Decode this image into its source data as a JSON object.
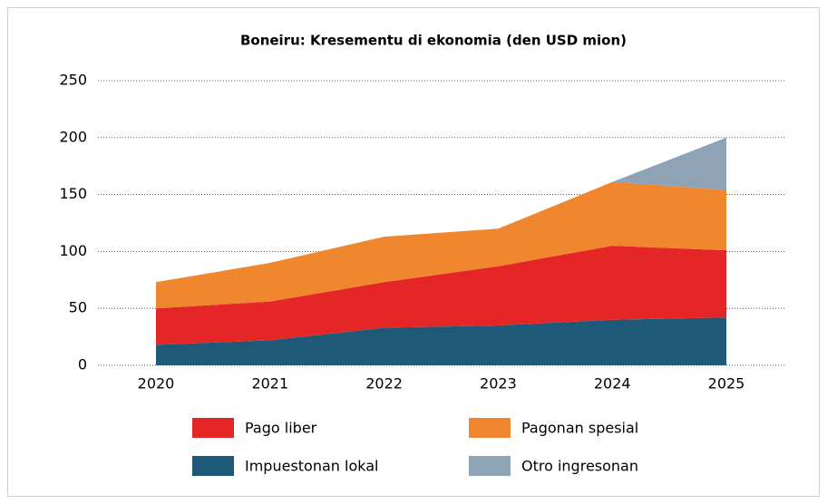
{
  "chart_data": {
    "type": "area",
    "stacked": true,
    "title": "Boneiru: Kresementu di ekonomia (den USD mion)",
    "categories": [
      "2020",
      "2021",
      "2022",
      "2023",
      "2024",
      "2025"
    ],
    "series": [
      {
        "name": "Impuestonan lokal",
        "color": "#1e5a78",
        "values": [
          18,
          22,
          33,
          35,
          40,
          42
        ]
      },
      {
        "name": "Pago liber",
        "color": "#e42726",
        "values": [
          32,
          34,
          40,
          52,
          65,
          59
        ]
      },
      {
        "name": "Pagonan spesial",
        "color": "#f0862e",
        "values": [
          23,
          34,
          40,
          33,
          56,
          53
        ]
      },
      {
        "name": "Otro ingresonan",
        "color": "#8fa3b6",
        "values": [
          0,
          0,
          0,
          0,
          0,
          46
        ]
      }
    ],
    "ylim": [
      0,
      250
    ],
    "yticks": [
      0,
      50,
      100,
      150,
      200,
      250
    ],
    "grid": true
  }
}
